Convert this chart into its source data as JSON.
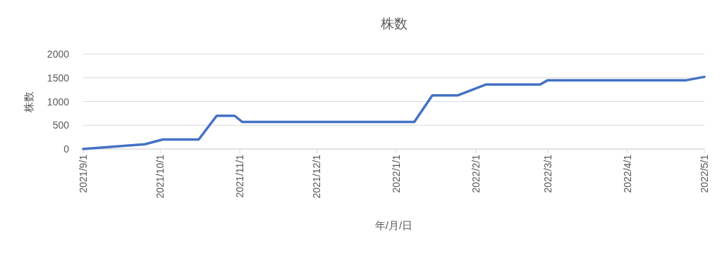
{
  "chart_data": {
    "type": "line",
    "title": "株数",
    "xlabel": "年/月/日",
    "ylabel": "株数",
    "x": [
      "2021-09-01",
      "2021-09-25",
      "2021-10-02",
      "2021-10-16",
      "2021-10-23",
      "2021-10-30",
      "2021-11-02",
      "2022-01-08",
      "2022-01-15",
      "2022-01-25",
      "2022-02-05",
      "2022-02-26",
      "2022-03-01",
      "2022-04-24",
      "2022-05-01"
    ],
    "series": [
      {
        "color": "#4472c4",
        "values": [
          0,
          100,
          200,
          200,
          700,
          700,
          570,
          570,
          1130,
          1130,
          1360,
          1360,
          1450,
          1450,
          1520
        ]
      }
    ],
    "xlim": [
      "2021-09-01",
      "2022-05-01"
    ],
    "xticks": [
      {
        "value": "2021-09-01",
        "label": "2021/9/1"
      },
      {
        "value": "2021-10-01",
        "label": "2021/10/1"
      },
      {
        "value": "2021-11-01",
        "label": "2021/11/1"
      },
      {
        "value": "2021-12-01",
        "label": "2021/12/1"
      },
      {
        "value": "2022-01-01",
        "label": "2022/1/1"
      },
      {
        "value": "2022-02-01",
        "label": "2022/2/1"
      },
      {
        "value": "2022-03-01",
        "label": "2022/3/1"
      },
      {
        "value": "2022-04-01",
        "label": "2022/4/1"
      },
      {
        "value": "2022-05-01",
        "label": "2022/5/1"
      }
    ],
    "ylim": [
      0,
      2000
    ],
    "yticks": [
      0,
      500,
      1000,
      1500,
      2000
    ],
    "grid": "y",
    "line_style": "solid",
    "marker": "none"
  }
}
